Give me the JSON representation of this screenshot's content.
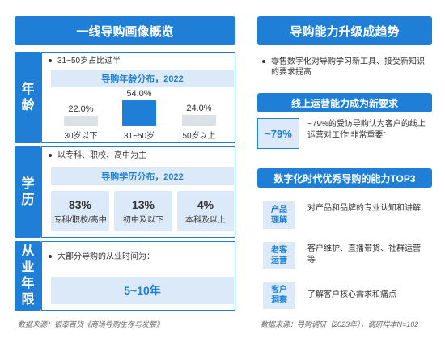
{
  "left": {
    "title": "一线导购画像概览",
    "age": {
      "side_label": [
        "年",
        "龄"
      ],
      "bullet": "31~50岁占比过半",
      "subhead": "导购年龄分布，2022"
    },
    "education": {
      "side_label": [
        "学",
        "历"
      ],
      "bullet": "以专科、职校、高中为主",
      "subhead": "导购学历分布，2022",
      "items": [
        {
          "value": "83%",
          "label": "专科/职校/高中"
        },
        {
          "value": "13%",
          "label": "初中及以下"
        },
        {
          "value": "4%",
          "label": "本科及以上"
        }
      ]
    },
    "tenure": {
      "side_label": [
        "从",
        "业",
        "年",
        "限"
      ],
      "bullet": "大部分导购的从业时间为：",
      "value": "5~10年"
    },
    "source": "数据来源：银泰百货《商场导购生存与发展》"
  },
  "right": {
    "title": "导购能力升级成趋势",
    "bullet": "零售数字化对导购学习新工具、接受新知识的要求提高",
    "online_head": "线上运营能力成为新要求",
    "stat_value": "~79%",
    "stat_text": "~79%的受访导购认为客户的线上运营对工作“非常重要”",
    "top3_head": "数字化时代优秀导购的能力TOP3",
    "abilities": [
      {
        "tag": [
          "产品",
          "理解"
        ],
        "text": "对产品和品牌的专业认知和讲解"
      },
      {
        "tag": [
          "老客",
          "运营"
        ],
        "text": "客户维护、直播带货、社群运营等"
      },
      {
        "tag": [
          "客户",
          "洞察"
        ],
        "text": "了解客户核心需求和痛点"
      }
    ],
    "source": "数据来源：导购调研（2023年），调研样本N=102"
  },
  "chart_data": {
    "type": "bar",
    "title": "导购年龄分布，2022",
    "categories": [
      "30岁以下",
      "31~50岁",
      "50岁以上"
    ],
    "values": [
      22.0,
      54.0,
      24.0
    ],
    "value_labels": [
      "22.0%",
      "54.0%",
      "24.0%"
    ],
    "ylim": [
      0,
      54
    ],
    "colors": [
      "#dce1e8",
      "#1f7fd6",
      "#dce1e8"
    ],
    "grid": false
  }
}
